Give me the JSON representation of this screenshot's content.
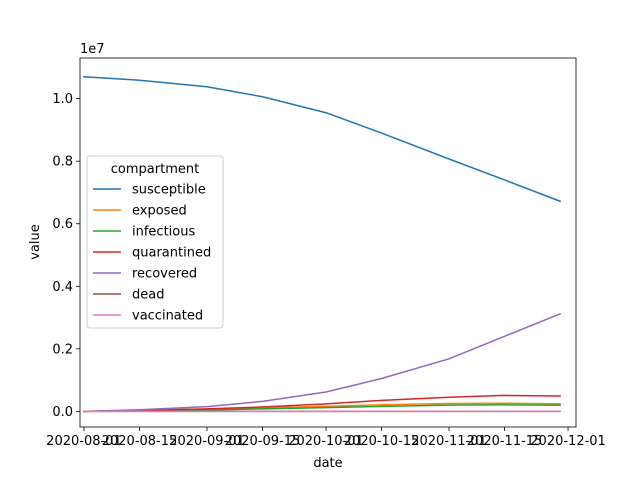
{
  "chart_data": {
    "type": "line",
    "xlabel": "date",
    "ylabel": "value",
    "y_offset_text": "1e7",
    "y_scale": 10000000,
    "x_domain": [
      "2020-07-31",
      "2020-12-03"
    ],
    "ylim": [
      -0.05,
      1.13
    ],
    "x_ticks": [
      "2020-08-01",
      "2020-08-15",
      "2020-09-01",
      "2020-09-15",
      "2020-10-01",
      "2020-10-15",
      "2020-11-01",
      "2020-11-15",
      "2020-12-01"
    ],
    "x_tick_labels": [
      "2020-08-01",
      "2020-08-15",
      "2020-09-01",
      "2020-09-15",
      "2020-10-01",
      "2020-10-15",
      "2020-11-01",
      "2020-11-15",
      "2020-12-01"
    ],
    "y_ticks": [
      0.0,
      0.2,
      0.4,
      0.6,
      0.8,
      1.0
    ],
    "y_tick_labels": [
      "0.0",
      "0.2",
      "0.4",
      "0.6",
      "0.8",
      "1.0"
    ],
    "grid": false,
    "legend": {
      "title": "compartment",
      "placement": "center-left"
    },
    "x": [
      "2020-08-01",
      "2020-08-15",
      "2020-09-01",
      "2020-09-15",
      "2020-10-01",
      "2020-10-15",
      "2020-11-01",
      "2020-11-15",
      "2020-11-29"
    ],
    "series": [
      {
        "name": "susceptible",
        "color": "#1f77b4",
        "values": [
          1.07,
          1.059,
          1.038,
          1.006,
          0.955,
          0.89,
          0.807,
          0.74,
          0.672
        ]
      },
      {
        "name": "exposed",
        "color": "#ff7f0e",
        "values": [
          0.0,
          0.002,
          0.006,
          0.011,
          0.016,
          0.021,
          0.025,
          0.026,
          0.024
        ]
      },
      {
        "name": "infectious",
        "color": "#2ca02c",
        "values": [
          0.0,
          0.002,
          0.004,
          0.008,
          0.012,
          0.016,
          0.02,
          0.021,
          0.02
        ]
      },
      {
        "name": "quarantined",
        "color": "#d62728",
        "values": [
          0.0,
          0.003,
          0.008,
          0.014,
          0.024,
          0.035,
          0.045,
          0.051,
          0.049
        ]
      },
      {
        "name": "recovered",
        "color": "#9467bd",
        "values": [
          0.0,
          0.005,
          0.015,
          0.032,
          0.062,
          0.105,
          0.168,
          0.24,
          0.312
        ]
      },
      {
        "name": "dead",
        "color": "#8c564b",
        "values": [
          0.0,
          0.0,
          0.0,
          0.0,
          0.0,
          0.0,
          0.0,
          0.0,
          0.0
        ]
      },
      {
        "name": "vaccinated",
        "color": "#e377c2",
        "values": [
          0.0,
          0.0,
          0.0,
          0.0,
          0.0,
          0.0,
          0.0,
          0.0,
          0.0
        ]
      }
    ]
  }
}
